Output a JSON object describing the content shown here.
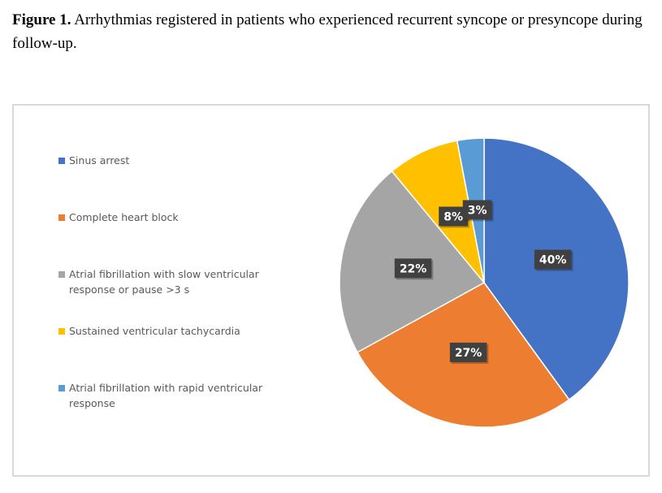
{
  "caption": {
    "label": "Figure 1.",
    "text": "Arrhythmias registered in patients who experienced recurrent syncope or presyncope during follow-up."
  },
  "chart_data": {
    "type": "pie",
    "categories": [
      "Sinus arrest",
      "Complete heart block",
      "Atrial fibrillation with slow ventricular response or pause >3 s",
      "Sustained ventricular tachycardia",
      "Atrial fibrillation with rapid ventricular response"
    ],
    "values": [
      40,
      27,
      22,
      8,
      3
    ],
    "value_labels": [
      "40%",
      "27%",
      "22%",
      "8%",
      "3%"
    ],
    "colors": [
      "#4472c4",
      "#ed7d31",
      "#a5a5a5",
      "#ffc000",
      "#5b9bd5"
    ],
    "legend": "left"
  }
}
